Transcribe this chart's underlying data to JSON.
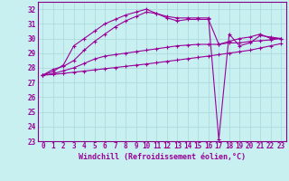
{
  "xlabel": "Windchill (Refroidissement éolien,°C)",
  "background_color": "#c8f0f0",
  "grid_color": "#a8d8d8",
  "line_color": "#990099",
  "spine_color": "#880088",
  "xlim": [
    -0.5,
    23.5
  ],
  "ylim": [
    23,
    32.5
  ],
  "yticks": [
    23,
    24,
    25,
    26,
    27,
    28,
    29,
    30,
    31,
    32
  ],
  "xticks": [
    0,
    1,
    2,
    3,
    4,
    5,
    6,
    7,
    8,
    9,
    10,
    11,
    12,
    13,
    14,
    15,
    16,
    17,
    18,
    19,
    20,
    21,
    22,
    23
  ],
  "series1_x": [
    0,
    1,
    2,
    3,
    4,
    5,
    6,
    7,
    8,
    9,
    10,
    11,
    12,
    13,
    14,
    15,
    16,
    17,
    18,
    19,
    20,
    21,
    22,
    23
  ],
  "series1_y": [
    27.5,
    27.9,
    28.1,
    28.5,
    29.2,
    29.8,
    30.3,
    30.8,
    31.2,
    31.5,
    31.8,
    31.7,
    31.4,
    31.2,
    31.3,
    31.3,
    31.3,
    29.6,
    29.8,
    30.0,
    30.1,
    30.3,
    30.0,
    30.0
  ],
  "series2_x": [
    0,
    1,
    2,
    3,
    4,
    5,
    6,
    7,
    8,
    9,
    10,
    11,
    12,
    13,
    14,
    15,
    16,
    17,
    18,
    19,
    20,
    21,
    22,
    23
  ],
  "series2_y": [
    27.5,
    27.75,
    28.2,
    29.5,
    30.0,
    30.5,
    31.0,
    31.3,
    31.6,
    31.8,
    32.0,
    31.7,
    31.5,
    31.4,
    31.4,
    31.4,
    31.4,
    23.1,
    30.3,
    29.5,
    29.7,
    30.2,
    30.1,
    30.0
  ],
  "series3_x": [
    0,
    1,
    2,
    3,
    4,
    5,
    6,
    7,
    8,
    9,
    10,
    11,
    12,
    13,
    14,
    15,
    16,
    17,
    18,
    19,
    20,
    21,
    22,
    23
  ],
  "series3_y": [
    27.5,
    27.6,
    27.8,
    28.0,
    28.3,
    28.6,
    28.8,
    28.9,
    29.0,
    29.1,
    29.2,
    29.3,
    29.4,
    29.5,
    29.55,
    29.6,
    29.6,
    29.6,
    29.7,
    29.7,
    29.8,
    29.85,
    29.9,
    30.0
  ],
  "series4_x": [
    0,
    1,
    2,
    3,
    4,
    5,
    6,
    7,
    8,
    9,
    10,
    11,
    12,
    13,
    14,
    15,
    16,
    17,
    18,
    19,
    20,
    21,
    22,
    23
  ],
  "series4_y": [
    27.5,
    27.55,
    27.62,
    27.7,
    27.78,
    27.86,
    27.94,
    28.02,
    28.1,
    28.18,
    28.26,
    28.35,
    28.44,
    28.53,
    28.62,
    28.71,
    28.8,
    28.9,
    29.0,
    29.1,
    29.2,
    29.35,
    29.5,
    29.65
  ],
  "tick_fontsize": 5.5,
  "xlabel_fontsize": 6.0
}
